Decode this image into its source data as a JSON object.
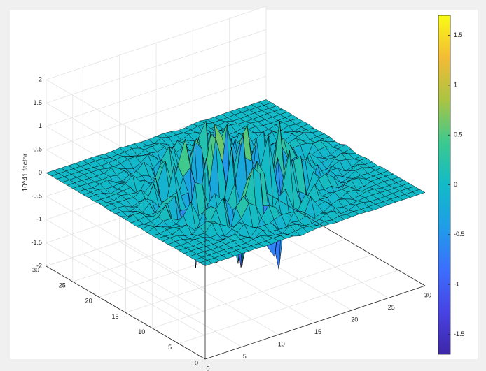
{
  "chart_data": {
    "type": "surface",
    "zlabel": "10^41 factor",
    "xlim": [
      0,
      30
    ],
    "ylim": [
      0,
      30
    ],
    "zlim": [
      -2,
      2
    ],
    "grid": true,
    "x_ticks": [
      "0",
      "5",
      "10",
      "15",
      "20",
      "25",
      "30"
    ],
    "y_ticks": [
      "0",
      "5",
      "10",
      "15",
      "20",
      "25",
      "30"
    ],
    "z_ticks": [
      "-2",
      "-1.5",
      "-1",
      "-0.5",
      "0",
      "0.5",
      "1",
      "1.5",
      "2"
    ],
    "colorbar": {
      "range": [
        -1.7,
        1.7
      ],
      "ticks": [
        "1.5",
        "1",
        "0.5",
        "0",
        "-0.5",
        "-1",
        "-1.5"
      ],
      "tick_values": [
        1.5,
        1,
        0.5,
        0,
        -0.5,
        -1,
        -1.5
      ],
      "colormap": [
        "#3e26a8",
        "#4743e3",
        "#3b6ffd",
        "#1f9de8",
        "#12bac8",
        "#3cc98f",
        "#aac442",
        "#f3bb36",
        "#f9fb15"
      ]
    },
    "surface": {
      "grid_size": 31,
      "x_range": [
        0,
        30
      ],
      "y_range": [
        0,
        30
      ],
      "edge_color": "#000000"
    }
  }
}
